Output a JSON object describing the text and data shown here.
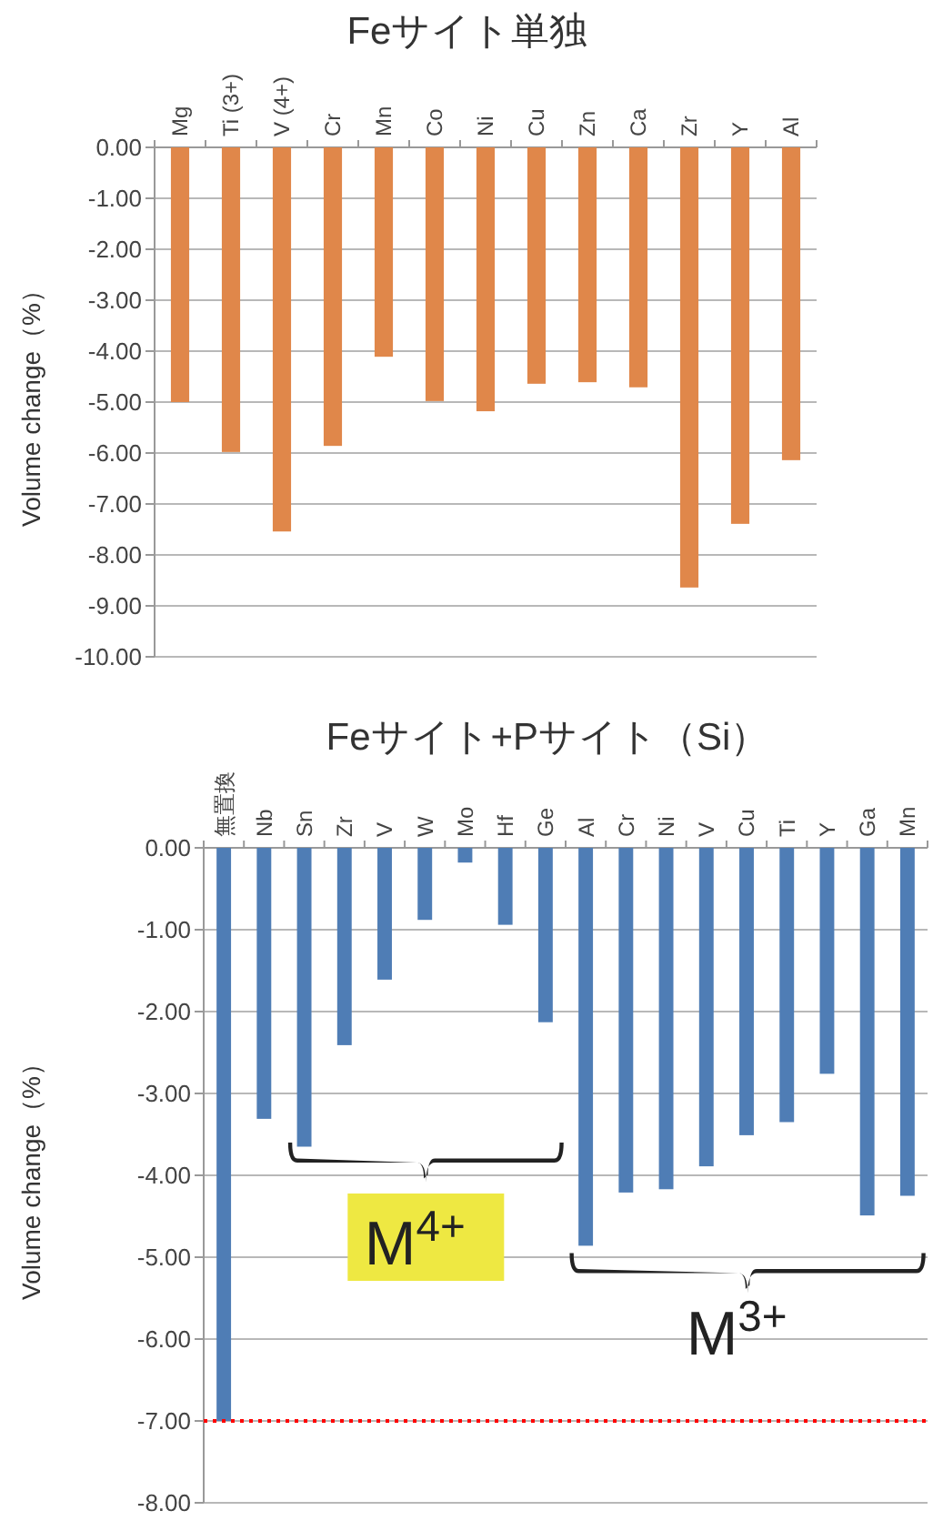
{
  "chart_data": [
    {
      "type": "bar",
      "title": "Feサイト単独",
      "ylabel": "Volume change（%）",
      "categories": [
        "Mg",
        "Ti (3+)",
        "V (4+)",
        "Cr",
        "Mn",
        "Co",
        "Ni",
        "Cu",
        "Zn",
        "Ca",
        "Zr",
        "Y",
        "Al"
      ],
      "values": [
        -5.0,
        -5.98,
        -7.54,
        -5.86,
        -4.11,
        -4.98,
        -5.18,
        -4.64,
        -4.61,
        -4.71,
        -8.64,
        -7.39,
        -6.14
      ],
      "color": "#e0874a",
      "ylim": [
        -10,
        0
      ],
      "yticks": [
        {
          "value": 0,
          "label": "0.00"
        },
        {
          "value": -1,
          "label": "-1.00"
        },
        {
          "value": -2,
          "label": "-2.00"
        },
        {
          "value": -3,
          "label": "-3.00"
        },
        {
          "value": -4,
          "label": "-4.00"
        },
        {
          "value": -5,
          "label": "-5.00"
        },
        {
          "value": -6,
          "label": "-6.00"
        },
        {
          "value": -7,
          "label": "-7.00"
        },
        {
          "value": -8,
          "label": "-8.00"
        },
        {
          "value": -9,
          "label": "-9.00"
        },
        {
          "value": -10,
          "label": "-10.00"
        }
      ],
      "grid": "y"
    },
    {
      "type": "bar",
      "title": "Feサイト+Pサイト（Si）",
      "ylabel": "Volume change（%）",
      "categories": [
        "無置換",
        "Nb",
        "Sn",
        "Zr",
        "V",
        "W",
        "Mo",
        "Hf",
        "Ge",
        "Al",
        "Cr",
        "Ni",
        "V",
        "Cu",
        "Ti",
        "Y",
        "Ga",
        "Mn"
      ],
      "values": [
        -7.0,
        -3.31,
        -3.65,
        -2.41,
        -1.61,
        -0.88,
        -0.18,
        -0.94,
        -2.13,
        -4.86,
        -4.21,
        -4.17,
        -3.89,
        -3.51,
        -3.35,
        -2.76,
        -4.49,
        -4.25
      ],
      "color": "#4f7db5",
      "ylim": [
        -8,
        0
      ],
      "yticks": [
        {
          "value": 0,
          "label": "0.00"
        },
        {
          "value": -1,
          "label": "-1.00"
        },
        {
          "value": -2,
          "label": "-2.00"
        },
        {
          "value": -3,
          "label": "-3.00"
        },
        {
          "value": -4,
          "label": "-4.00"
        },
        {
          "value": -5,
          "label": "-5.00"
        },
        {
          "value": -6,
          "label": "-6.00"
        },
        {
          "value": -7,
          "label": "-7.00"
        },
        {
          "value": -8,
          "label": "-8.00"
        }
      ],
      "grid": "y",
      "ref_lines": [
        {
          "axis": "y",
          "value": -7,
          "color": "#ff0000",
          "line_style": "dotted"
        }
      ],
      "annotations": [
        "M$^{4+}$",
        "M$^{3+}$"
      ]
    }
  ]
}
